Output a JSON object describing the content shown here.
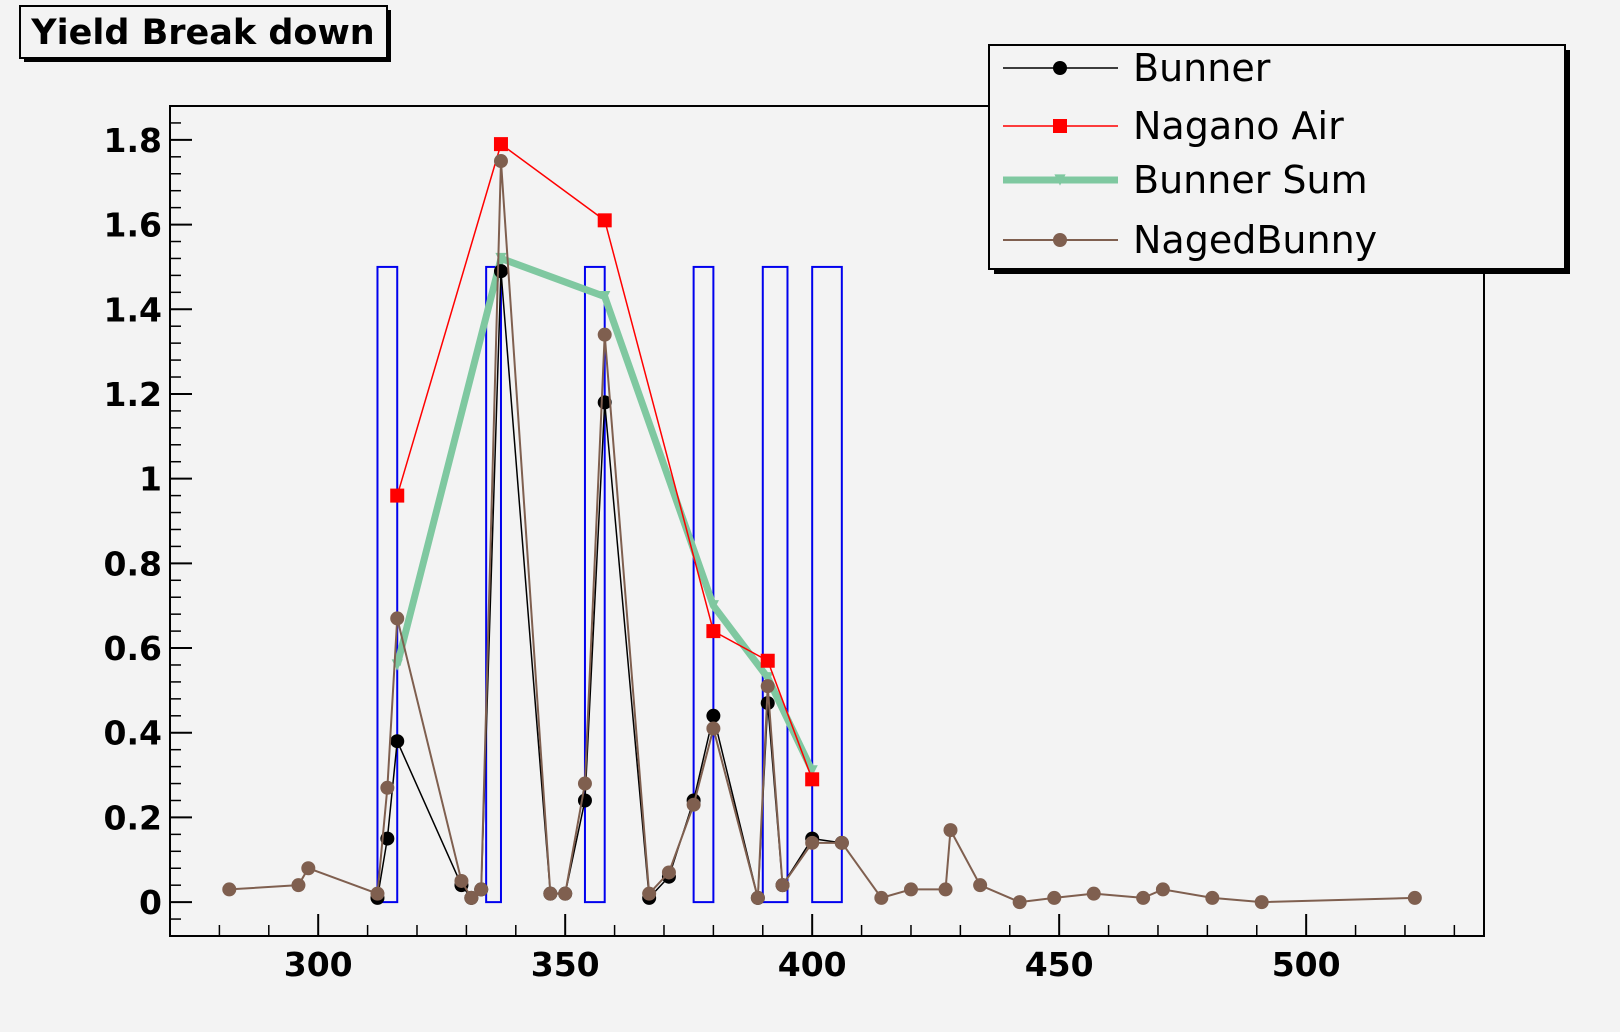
{
  "chart_data": {
    "type": "line",
    "title": "Yield Break down",
    "xlabel": "",
    "ylabel": "",
    "xlim": [
      270,
      536
    ],
    "ylim": [
      -0.08,
      1.88
    ],
    "x_ticks": [
      300,
      350,
      400,
      450,
      500
    ],
    "y_ticks": [
      0,
      0.2,
      0.4,
      0.6,
      0.8,
      1,
      1.2,
      1.4,
      1.6,
      1.8
    ],
    "x_tick_labels": [
      "300",
      "350",
      "400",
      "450",
      "500"
    ],
    "y_tick_labels": [
      "0",
      "0.2",
      "0.4",
      "0.6",
      "0.8",
      "1",
      "1.2",
      "1.4",
      "1.6",
      "1.8"
    ],
    "grid": false,
    "legend_position": "top-right",
    "series": [
      {
        "name": "Bunner",
        "color": "#000000",
        "marker": "circle",
        "x": [
          312,
          314,
          316,
          329,
          331,
          333,
          337,
          347,
          350,
          354,
          358,
          367,
          371,
          376,
          380,
          389,
          391,
          394,
          400,
          406
        ],
        "y": [
          0.01,
          0.15,
          0.38,
          0.04,
          0.01,
          0.03,
          1.49,
          0.02,
          0.02,
          0.24,
          1.18,
          0.01,
          0.06,
          0.24,
          0.44,
          0.01,
          0.47,
          0.04,
          0.15,
          0.14
        ]
      },
      {
        "name": "Nagano Air",
        "color": "#ff0000",
        "marker": "square",
        "x": [
          316,
          337,
          358,
          380,
          391,
          400
        ],
        "y": [
          0.96,
          1.79,
          1.61,
          0.64,
          0.57,
          0.29
        ]
      },
      {
        "name": "Bunner Sum",
        "color": "#7fc8a0",
        "marker": "triangle-down",
        "x": [
          316,
          337,
          358,
          380,
          391,
          400
        ],
        "y": [
          0.56,
          1.52,
          1.43,
          0.7,
          0.53,
          0.31
        ]
      },
      {
        "name": "NagedBunny",
        "color": "#7f5f4f",
        "marker": "circle",
        "x": [
          282,
          296,
          298,
          312,
          314,
          316,
          329,
          331,
          333,
          337,
          347,
          350,
          354,
          358,
          367,
          371,
          376,
          380,
          389,
          391,
          394,
          400,
          406,
          414,
          420,
          427,
          428,
          434,
          442,
          449,
          457,
          467,
          471,
          481,
          491,
          522
        ],
        "y": [
          0.03,
          0.04,
          0.08,
          0.02,
          0.27,
          0.67,
          0.05,
          0.01,
          0.03,
          1.75,
          0.02,
          0.02,
          0.28,
          1.34,
          0.02,
          0.07,
          0.23,
          0.41,
          0.01,
          0.51,
          0.04,
          0.14,
          0.14,
          0.01,
          0.03,
          0.03,
          0.17,
          0.04,
          0.0,
          0.01,
          0.02,
          0.01,
          0.03,
          0.01,
          0.0,
          0.01
        ]
      }
    ],
    "window_boxes": {
      "color": "#0000ee",
      "y_top": 1.5,
      "x_ranges": [
        [
          312,
          316
        ],
        [
          334,
          337
        ],
        [
          354,
          358
        ],
        [
          376,
          380
        ],
        [
          390,
          395
        ],
        [
          400,
          406
        ]
      ]
    }
  }
}
